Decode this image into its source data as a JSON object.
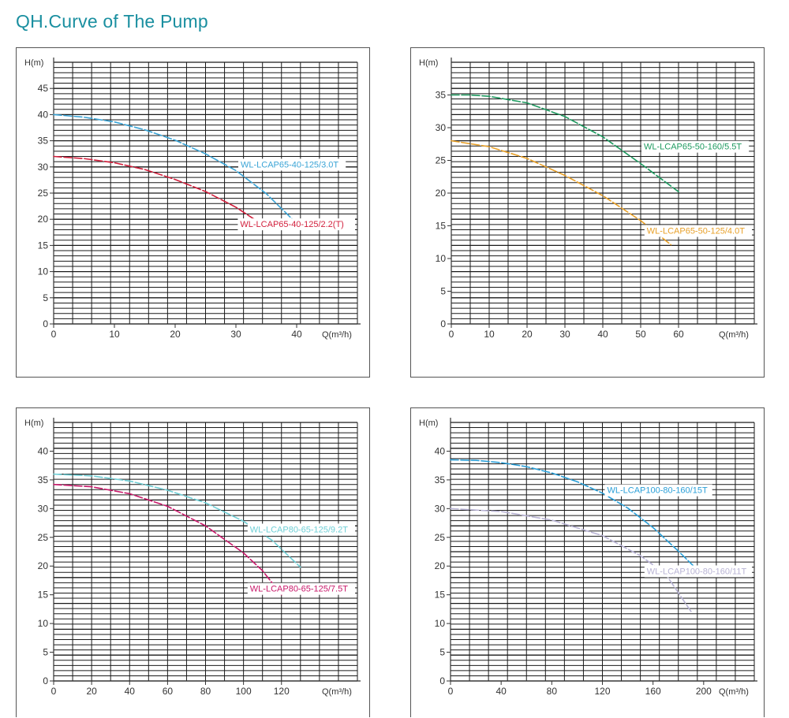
{
  "page": {
    "title": "QH.Curve of The Pump"
  },
  "chart_data": [
    {
      "type": "line",
      "ylabel": "H(m)",
      "xlabel": "Q(m³/h)",
      "xlim": [
        0,
        50
      ],
      "ylim": [
        0,
        50
      ],
      "xticks": [
        0,
        10,
        20,
        30,
        40
      ],
      "yticks": [
        0,
        5,
        10,
        15,
        20,
        25,
        30,
        35,
        40,
        45
      ],
      "grid": true,
      "series": [
        {
          "name": "WL-LCAP65-40-125/3.0T",
          "color": "#3aa4d6",
          "x": [
            0,
            5,
            10,
            15,
            20,
            25,
            30,
            35,
            40
          ],
          "y": [
            40,
            39.5,
            38.6,
            37.1,
            35.1,
            32.5,
            29.3,
            24.9,
            19.2
          ]
        },
        {
          "name": "WL-LCAP65-40-125/2.2(T)",
          "color": "#d21f3c",
          "x": [
            0,
            5,
            10,
            15,
            20,
            25,
            30,
            35
          ],
          "y": [
            32,
            31.6,
            30.8,
            29.5,
            27.6,
            25.3,
            22.3,
            18.5
          ]
        }
      ]
    },
    {
      "type": "line",
      "ylabel": "H(m)",
      "xlabel": "Q(m³/h)",
      "xlim": [
        0,
        80
      ],
      "ylim": [
        0,
        40
      ],
      "xticks": [
        0,
        10,
        20,
        30,
        40,
        50,
        60
      ],
      "yticks": [
        0,
        5,
        10,
        15,
        20,
        25,
        30,
        35
      ],
      "grid": true,
      "series": [
        {
          "name": "WL-LCAP65-50-160/5.5T",
          "color": "#1d9a5f",
          "x": [
            0,
            5,
            10,
            20,
            30,
            40,
            50,
            60
          ],
          "y": [
            35,
            35,
            34.8,
            33.8,
            31.7,
            28.6,
            24.5,
            20.2
          ]
        },
        {
          "name": "WL-LCAP65-50-125/4.0T",
          "color": "#e8a028",
          "x": [
            0,
            10,
            20,
            30,
            40,
            50,
            58
          ],
          "y": [
            28,
            27.1,
            25.3,
            22.7,
            19.6,
            15.8,
            12.1
          ]
        }
      ]
    },
    {
      "type": "line",
      "ylabel": "H(m)",
      "xlabel": "Q(m³/h)",
      "xlim": [
        0,
        160
      ],
      "ylim": [
        0,
        45
      ],
      "xticks": [
        0,
        20,
        40,
        60,
        80,
        100,
        120
      ],
      "yticks": [
        0,
        5,
        10,
        15,
        20,
        25,
        30,
        35,
        40
      ],
      "grid": true,
      "series": [
        {
          "name": "WL-LCAP80-65-125/9.2T",
          "color": "#6fcfd6",
          "x": [
            0,
            20,
            40,
            60,
            80,
            100,
            115,
            130
          ],
          "y": [
            36,
            35.7,
            34.8,
            33.2,
            31,
            27.8,
            24.5,
            19.8
          ]
        },
        {
          "name": "WL-LCAP80-65-125/7.5T",
          "color": "#c8186a",
          "x": [
            0,
            20,
            40,
            60,
            80,
            100,
            110,
            120
          ],
          "y": [
            34.2,
            33.8,
            32.6,
            30.4,
            27,
            22.3,
            19.2,
            15
          ]
        }
      ]
    },
    {
      "type": "line",
      "ylabel": "H(m)",
      "xlabel": "Q(m³/h)",
      "xlim": [
        0,
        240
      ],
      "ylim": [
        0,
        45
      ],
      "xticks": [
        0,
        40,
        80,
        120,
        160,
        200
      ],
      "yticks": [
        0,
        5,
        10,
        15,
        20,
        25,
        30,
        35,
        40
      ],
      "grid": true,
      "series": [
        {
          "name": "WL-LCAP100-80-160/15T",
          "color": "#2a9fd8",
          "x": [
            0,
            20,
            40,
            60,
            80,
            100,
            120,
            140,
            160,
            180,
            200
          ],
          "y": [
            38.5,
            38.4,
            38,
            37.3,
            36.2,
            34.7,
            32.7,
            30.1,
            26.7,
            22.6,
            18.3
          ]
        },
        {
          "name": "WL-LCAP100-80-160/11T",
          "color": "#b8b3d4",
          "x": [
            0,
            40,
            80,
            120,
            150,
            170,
            190
          ],
          "y": [
            30,
            29.5,
            28,
            25.3,
            21.8,
            18.6,
            12.1
          ]
        }
      ]
    }
  ]
}
